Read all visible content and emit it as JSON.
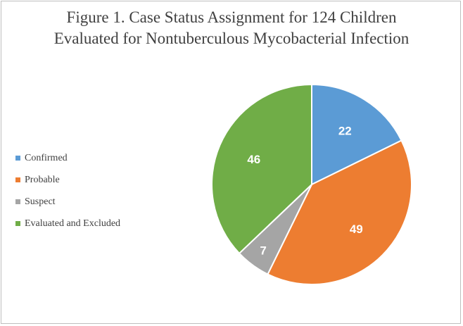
{
  "chart_data": {
    "type": "pie",
    "title": "Figure 1. Case Status Assignment for 124 Children Evaluated for Nontuberculous Mycobacterial Infection",
    "title_lines": [
      "Figure 1. Case Status Assignment for 124 Children",
      "Evaluated for Nontuberculous Mycobacterial Infection"
    ],
    "categories": [
      "Confirmed",
      "Probable",
      "Suspect",
      "Evaluated and Excluded"
    ],
    "values": [
      22,
      49,
      7,
      46
    ],
    "data_labels": [
      "22",
      "49",
      "7",
      "46"
    ],
    "colors": [
      "#5b9bd5",
      "#ed7d31",
      "#a5a5a5",
      "#70ad47"
    ],
    "legend_position": "left"
  }
}
